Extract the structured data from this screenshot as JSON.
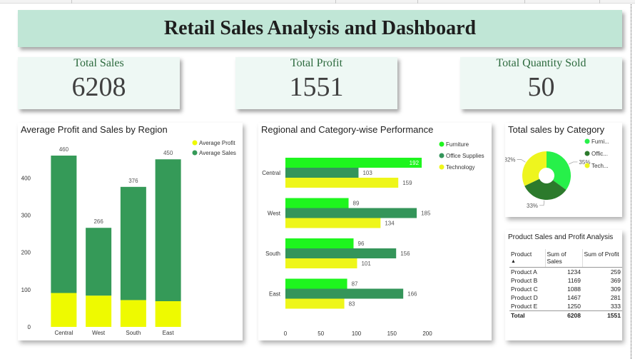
{
  "dashboard": {
    "title": "Retail Sales Analysis and Dashboard"
  },
  "colors": {
    "banner": "#c0e6d6",
    "kpi_bg": "#eef8f4",
    "kpi_label": "#2d6a3e",
    "dark_green": "#359a58",
    "yellow": "#eefa00",
    "bright_green": "#1ef51e",
    "office_green": "#34955a",
    "tech_yellow": "#eef61a",
    "pie_furniture": "#27f04a",
    "pie_office": "#2c7a2c",
    "pie_tech": "#eef51e"
  },
  "kpis": [
    {
      "label": "Total Sales",
      "value": "6208"
    },
    {
      "label": "Total Profit",
      "value": "1551"
    },
    {
      "label": "Total Quantity Sold",
      "value": "50"
    }
  ],
  "charts": {
    "region": {
      "title": "Average Profit and Sales by Region"
    },
    "regional_category": {
      "title": "Regional and Category-wise Performance"
    },
    "category_pie": {
      "title": "Total sales by Category"
    }
  },
  "table": {
    "title": "Product Sales and Profit Analysis",
    "headers": [
      "Product",
      "Sum of Sales",
      "Sum of Profit"
    ],
    "sort_icon": "sort-up-icon",
    "rows": [
      [
        "Product A",
        "1234",
        "259"
      ],
      [
        "Product B",
        "1169",
        "369"
      ],
      [
        "Product C",
        "1088",
        "309"
      ],
      [
        "Product D",
        "1467",
        "281"
      ],
      [
        "Product E",
        "1250",
        "333"
      ]
    ],
    "total": [
      "Total",
      "6208",
      "1551"
    ]
  },
  "chart_data": [
    {
      "type": "bar",
      "title": "Average Profit and Sales by Region",
      "stacked": true,
      "categories": [
        "Central",
        "West",
        "South",
        "East"
      ],
      "series": [
        {
          "name": "Average Profit",
          "values": [
            91,
            84,
            72,
            69
          ],
          "color": "#eefa00"
        },
        {
          "name": "Average Sales",
          "values": [
            369,
            182,
            304,
            381
          ],
          "color": "#359a58"
        }
      ],
      "totals": [
        460,
        266,
        376,
        450
      ],
      "y_ticks": [
        0,
        100,
        200,
        300,
        400
      ],
      "ylim": [
        0,
        460
      ],
      "legend": "top-right"
    },
    {
      "type": "bar",
      "orientation": "horizontal",
      "title": "Regional and Category-wise Performance",
      "categories": [
        "Central",
        "West",
        "South",
        "East"
      ],
      "series": [
        {
          "name": "Furniture",
          "values": [
            192,
            89,
            96,
            87
          ],
          "color": "#1ef51e"
        },
        {
          "name": "Office Supplies",
          "values": [
            103,
            185,
            156,
            166
          ],
          "color": "#34955a"
        },
        {
          "name": "Technology",
          "values": [
            159,
            134,
            101,
            83
          ],
          "color": "#eef61a"
        }
      ],
      "x_ticks": [
        0,
        50,
        100,
        150,
        200
      ],
      "xlim": [
        0,
        200
      ],
      "legend": "top-right"
    },
    {
      "type": "pie",
      "donut": true,
      "title": "Total sales by Category",
      "labels": [
        "Furni...",
        "Offic...",
        "Tech..."
      ],
      "values": [
        35,
        33,
        32
      ],
      "value_labels": [
        "35%",
        "33%",
        "32%"
      ],
      "colors": [
        "#27f04a",
        "#2c7a2c",
        "#eef51e"
      ],
      "legend": "right"
    }
  ]
}
